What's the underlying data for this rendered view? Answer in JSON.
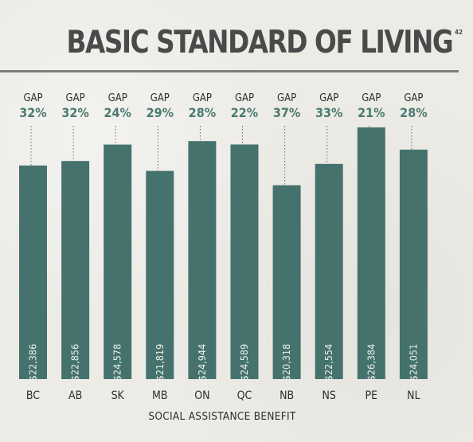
{
  "header": {
    "title": "BASIC STANDARD OF LIVING",
    "footnote": "42"
  },
  "chart_data": {
    "type": "bar",
    "title": "BASIC STANDARD OF LIVING",
    "xlabel": "SOCIAL ASSISTANCE BENEFIT",
    "ylabel": "",
    "categories": [
      "BC",
      "AB",
      "SK",
      "MB",
      "ON",
      "QC",
      "NB",
      "NS",
      "PE",
      "NL"
    ],
    "values": [
      22386,
      22856,
      24578,
      21819,
      24944,
      24589,
      20318,
      22554,
      26384,
      24051
    ],
    "value_labels": [
      "$22,386",
      "$22,856",
      "$24,578",
      "$21,819",
      "$24,944",
      "$24,589",
      "$20,318",
      "$22,554",
      "$26,384",
      "$24,051"
    ],
    "gap_label": "GAP",
    "gaps": [
      "32%",
      "32%",
      "24%",
      "29%",
      "28%",
      "22%",
      "37%",
      "33%",
      "21%",
      "28%"
    ],
    "ylim": [
      0,
      31000
    ],
    "grid": false,
    "bar_color": "#45726c",
    "gap_color": "#4a7a70"
  }
}
